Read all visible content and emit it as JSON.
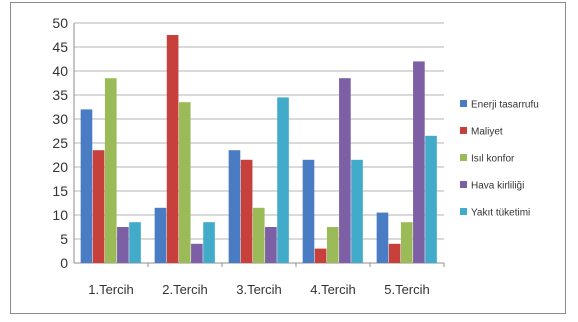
{
  "chart_data": {
    "type": "bar",
    "title": "",
    "xlabel": "",
    "ylabel": "",
    "ylim": [
      0,
      50
    ],
    "yticks": [
      0,
      5,
      10,
      15,
      20,
      25,
      30,
      35,
      40,
      45,
      50
    ],
    "grid": true,
    "legend_position": "right",
    "categories": [
      "1.Tercih",
      "2.Tercih",
      "3.Tercih",
      "4.Tercih",
      "5.Tercih"
    ],
    "series": [
      {
        "name": "Enerji tasarrufu",
        "color": "#4a7cc3",
        "values": [
          32,
          11.5,
          23.5,
          21.5,
          10.5
        ]
      },
      {
        "name": "Maliyet",
        "color": "#c8403c",
        "values": [
          23.5,
          47.5,
          21.5,
          3,
          4
        ]
      },
      {
        "name": "Isıl konfor",
        "color": "#9bbb59",
        "values": [
          38.5,
          33.5,
          11.5,
          7.5,
          8.5
        ]
      },
      {
        "name": "Hava kirliliği",
        "color": "#7d5fa6",
        "values": [
          7.5,
          4,
          7.5,
          38.5,
          42
        ]
      },
      {
        "name": "Yakıt tüketimi",
        "color": "#42abc9",
        "values": [
          8.5,
          8.5,
          34.5,
          21.5,
          26.5
        ]
      }
    ]
  }
}
